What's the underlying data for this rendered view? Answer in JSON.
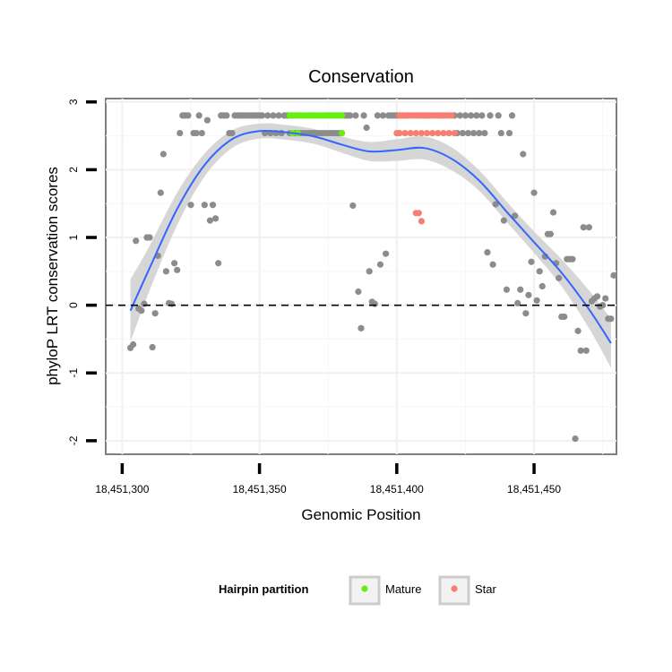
{
  "chart_data": {
    "type": "scatter",
    "title": "Conservation",
    "xlabel": "Genomic Position",
    "ylabel": "phyloP LRT conservation scores",
    "xlim": [
      18451294,
      18451480
    ],
    "ylim": [
      -2.2,
      3.05
    ],
    "x_ticks": [
      18451300,
      18451350,
      18451400,
      18451450
    ],
    "x_tick_labels": [
      "18,451,300",
      "18,451,350",
      "18,451,400",
      "18,451,450"
    ],
    "y_ticks": [
      -2,
      -1,
      0,
      1,
      2,
      3
    ],
    "y_tick_labels": [
      "-2",
      "-1",
      "0",
      "1",
      "2",
      "3"
    ],
    "grid": true,
    "reference_line": {
      "y": 0,
      "style": "dashed"
    },
    "legend": {
      "title": "Hairpin partition",
      "position": "bottom",
      "entries": [
        {
          "name": "Mature",
          "color": "#66ee11"
        },
        {
          "name": "Star",
          "color": "#f47f72"
        }
      ]
    },
    "colors": {
      "other": "#8c8c8c",
      "Mature": "#66ee11",
      "Star": "#f47f72",
      "smooth": "#3366ff",
      "ribbon": "#d2d2d2"
    },
    "series": [
      {
        "name": "Other",
        "points": [
          [
            18451303,
            -0.63
          ],
          [
            18451304,
            -0.58
          ],
          [
            18451305,
            0.95
          ],
          [
            18451306,
            -0.05
          ],
          [
            18451307,
            -0.08
          ],
          [
            18451308,
            0.02
          ],
          [
            18451309,
            1.0
          ],
          [
            18451310,
            1.0
          ],
          [
            18451311,
            -0.62
          ],
          [
            18451312,
            -0.12
          ],
          [
            18451313,
            0.73
          ],
          [
            18451314,
            1.66
          ],
          [
            18451315,
            2.23
          ],
          [
            18451316,
            0.5
          ],
          [
            18451317,
            0.03
          ],
          [
            18451318,
            0.02
          ],
          [
            18451319,
            0.62
          ],
          [
            18451320,
            0.52
          ],
          [
            18451321,
            2.54
          ],
          [
            18451322,
            2.8
          ],
          [
            18451323,
            2.8
          ],
          [
            18451324,
            2.8
          ],
          [
            18451325,
            1.48
          ],
          [
            18451326,
            2.54
          ],
          [
            18451327,
            2.54
          ],
          [
            18451328,
            2.8
          ],
          [
            18451329,
            2.54
          ],
          [
            18451330,
            1.48
          ],
          [
            18451331,
            2.73
          ],
          [
            18451332,
            1.25
          ],
          [
            18451333,
            1.48
          ],
          [
            18451334,
            1.28
          ],
          [
            18451335,
            0.62
          ],
          [
            18451336,
            2.8
          ],
          [
            18451337,
            2.8
          ],
          [
            18451338,
            2.8
          ],
          [
            18451339,
            2.54
          ],
          [
            18451340,
            2.54
          ],
          [
            18451341,
            2.8
          ],
          [
            18451342,
            2.8
          ],
          [
            18451343,
            2.8
          ],
          [
            18451344,
            2.8
          ],
          [
            18451345,
            2.8
          ],
          [
            18451346,
            2.8
          ],
          [
            18451347,
            2.8
          ],
          [
            18451348,
            2.8
          ],
          [
            18451349,
            2.8
          ],
          [
            18451350,
            2.8
          ],
          [
            18451351,
            2.8
          ],
          [
            18451352,
            2.54
          ],
          [
            18451353,
            2.8
          ],
          [
            18451354,
            2.54
          ],
          [
            18451355,
            2.8
          ],
          [
            18451356,
            2.54
          ],
          [
            18451357,
            2.8
          ],
          [
            18451358,
            2.54
          ],
          [
            18451359,
            2.8
          ],
          [
            18451360,
            2.8
          ],
          [
            18451361,
            2.54
          ],
          [
            18451362,
            2.8
          ],
          [
            18451363,
            2.54
          ],
          [
            18451364,
            2.54
          ],
          [
            18451365,
            2.54
          ],
          [
            18451366,
            2.54
          ],
          [
            18451367,
            2.54
          ],
          [
            18451368,
            2.54
          ],
          [
            18451369,
            2.54
          ],
          [
            18451370,
            2.54
          ],
          [
            18451371,
            2.54
          ],
          [
            18451372,
            2.54
          ],
          [
            18451373,
            2.54
          ],
          [
            18451374,
            2.54
          ],
          [
            18451375,
            2.54
          ],
          [
            18451376,
            2.54
          ],
          [
            18451377,
            2.54
          ],
          [
            18451378,
            2.54
          ],
          [
            18451379,
            2.54
          ],
          [
            18451380,
            2.54
          ],
          [
            18451381,
            2.8
          ],
          [
            18451382,
            2.8
          ],
          [
            18451383,
            2.8
          ],
          [
            18451384,
            1.47
          ],
          [
            18451385,
            2.8
          ],
          [
            18451386,
            0.2
          ],
          [
            18451387,
            -0.34
          ],
          [
            18451388,
            2.8
          ],
          [
            18451389,
            2.62
          ],
          [
            18451390,
            0.5
          ],
          [
            18451391,
            0.05
          ],
          [
            18451392,
            0.02
          ],
          [
            18451393,
            2.8
          ],
          [
            18451394,
            0.6
          ],
          [
            18451395,
            2.8
          ],
          [
            18451396,
            0.76
          ],
          [
            18451397,
            2.8
          ],
          [
            18451398,
            2.8
          ],
          [
            18451399,
            2.8
          ],
          [
            18451400,
            2.8
          ],
          [
            18451401,
            2.8
          ],
          [
            18451402,
            2.8
          ],
          [
            18451410,
            2.8
          ],
          [
            18451421,
            2.8
          ],
          [
            18451422,
            2.54
          ],
          [
            18451423,
            2.8
          ],
          [
            18451424,
            2.54
          ],
          [
            18451425,
            2.8
          ],
          [
            18451426,
            2.54
          ],
          [
            18451427,
            2.8
          ],
          [
            18451428,
            2.54
          ],
          [
            18451429,
            2.8
          ],
          [
            18451430,
            2.54
          ],
          [
            18451431,
            2.8
          ],
          [
            18451432,
            2.54
          ],
          [
            18451433,
            0.78
          ],
          [
            18451434,
            2.8
          ],
          [
            18451435,
            0.6
          ],
          [
            18451436,
            1.49
          ],
          [
            18451437,
            2.8
          ],
          [
            18451438,
            2.54
          ],
          [
            18451439,
            1.25
          ],
          [
            18451440,
            0.23
          ],
          [
            18451441,
            2.54
          ],
          [
            18451442,
            2.8
          ],
          [
            18451443,
            1.32
          ],
          [
            18451444,
            0.03
          ],
          [
            18451445,
            0.23
          ],
          [
            18451446,
            2.23
          ],
          [
            18451447,
            -0.12
          ],
          [
            18451448,
            0.15
          ],
          [
            18451449,
            0.64
          ],
          [
            18451450,
            1.66
          ],
          [
            18451451,
            0.07
          ],
          [
            18451452,
            0.5
          ],
          [
            18451453,
            0.28
          ],
          [
            18451454,
            0.72
          ],
          [
            18451455,
            1.05
          ],
          [
            18451456,
            1.05
          ],
          [
            18451457,
            1.37
          ],
          [
            18451458,
            0.62
          ],
          [
            18451459,
            0.4
          ],
          [
            18451460,
            -0.17
          ],
          [
            18451461,
            -0.17
          ],
          [
            18451462,
            0.68
          ],
          [
            18451463,
            0.68
          ],
          [
            18451464,
            0.68
          ],
          [
            18451465,
            -1.97
          ],
          [
            18451466,
            -0.38
          ],
          [
            18451467,
            -0.67
          ],
          [
            18451468,
            1.15
          ],
          [
            18451469,
            -0.67
          ],
          [
            18451470,
            1.15
          ],
          [
            18451471,
            0.06
          ],
          [
            18451472,
            0.1
          ],
          [
            18451473,
            0.13
          ],
          [
            18451474,
            -0.02
          ],
          [
            18451475,
            0.0
          ],
          [
            18451476,
            0.1
          ],
          [
            18451477,
            -0.2
          ],
          [
            18451478,
            -0.2
          ],
          [
            18451479,
            0.44
          ]
        ]
      },
      {
        "name": "Mature",
        "points": [
          [
            18451361,
            2.8
          ],
          [
            18451362,
            2.8
          ],
          [
            18451363,
            2.8
          ],
          [
            18451364,
            2.8
          ],
          [
            18451365,
            2.8
          ],
          [
            18451366,
            2.8
          ],
          [
            18451367,
            2.8
          ],
          [
            18451368,
            2.8
          ],
          [
            18451369,
            2.8
          ],
          [
            18451370,
            2.8
          ],
          [
            18451371,
            2.8
          ],
          [
            18451372,
            2.8
          ],
          [
            18451373,
            2.8
          ],
          [
            18451374,
            2.8
          ],
          [
            18451375,
            2.8
          ],
          [
            18451376,
            2.8
          ],
          [
            18451377,
            2.8
          ],
          [
            18451378,
            2.8
          ],
          [
            18451379,
            2.8
          ],
          [
            18451380,
            2.8
          ],
          [
            18451362,
            2.54
          ],
          [
            18451364,
            2.54
          ],
          [
            18451380,
            2.54
          ]
        ]
      },
      {
        "name": "Star",
        "points": [
          [
            18451401,
            2.8
          ],
          [
            18451402,
            2.8
          ],
          [
            18451403,
            2.8
          ],
          [
            18451404,
            2.8
          ],
          [
            18451405,
            2.8
          ],
          [
            18451406,
            2.8
          ],
          [
            18451407,
            2.8
          ],
          [
            18451408,
            2.8
          ],
          [
            18451409,
            2.8
          ],
          [
            18451410,
            2.8
          ],
          [
            18451411,
            2.8
          ],
          [
            18451412,
            2.8
          ],
          [
            18451413,
            2.8
          ],
          [
            18451414,
            2.8
          ],
          [
            18451415,
            2.8
          ],
          [
            18451416,
            2.8
          ],
          [
            18451417,
            2.8
          ],
          [
            18451418,
            2.8
          ],
          [
            18451419,
            2.8
          ],
          [
            18451420,
            2.8
          ],
          [
            18451400,
            2.54
          ],
          [
            18451401,
            2.54
          ],
          [
            18451403,
            2.54
          ],
          [
            18451405,
            2.54
          ],
          [
            18451407,
            2.54
          ],
          [
            18451409,
            2.54
          ],
          [
            18451411,
            2.54
          ],
          [
            18451413,
            2.54
          ],
          [
            18451415,
            2.54
          ],
          [
            18451417,
            2.54
          ],
          [
            18451419,
            2.54
          ],
          [
            18451421,
            2.54
          ],
          [
            18451407,
            1.36
          ],
          [
            18451408,
            1.36
          ],
          [
            18451409,
            1.24
          ]
        ]
      }
    ],
    "smooth": {
      "name": "Loess fit",
      "points": [
        [
          18451303,
          -0.08
        ],
        [
          18451310,
          0.55
        ],
        [
          18451320,
          1.42
        ],
        [
          18451330,
          2.07
        ],
        [
          18451340,
          2.45
        ],
        [
          18451350,
          2.57
        ],
        [
          18451360,
          2.55
        ],
        [
          18451370,
          2.49
        ],
        [
          18451380,
          2.37
        ],
        [
          18451390,
          2.27
        ],
        [
          18451400,
          2.29
        ],
        [
          18451410,
          2.32
        ],
        [
          18451420,
          2.16
        ],
        [
          18451430,
          1.84
        ],
        [
          18451440,
          1.38
        ],
        [
          18451450,
          0.93
        ],
        [
          18451460,
          0.48
        ],
        [
          18451470,
          -0.06
        ],
        [
          18451478,
          -0.56
        ]
      ],
      "ci_upper": [
        0.38,
        0.88,
        1.66,
        2.24,
        2.58,
        2.68,
        2.66,
        2.6,
        2.49,
        2.41,
        2.45,
        2.49,
        2.33,
        1.99,
        1.53,
        1.09,
        0.68,
        0.22,
        -0.2
      ],
      "ci_lower": [
        -0.54,
        0.22,
        1.18,
        1.9,
        2.32,
        2.46,
        2.44,
        2.38,
        2.25,
        2.13,
        2.13,
        2.15,
        1.99,
        1.69,
        1.23,
        0.77,
        0.28,
        -0.34,
        -0.92
      ]
    }
  }
}
